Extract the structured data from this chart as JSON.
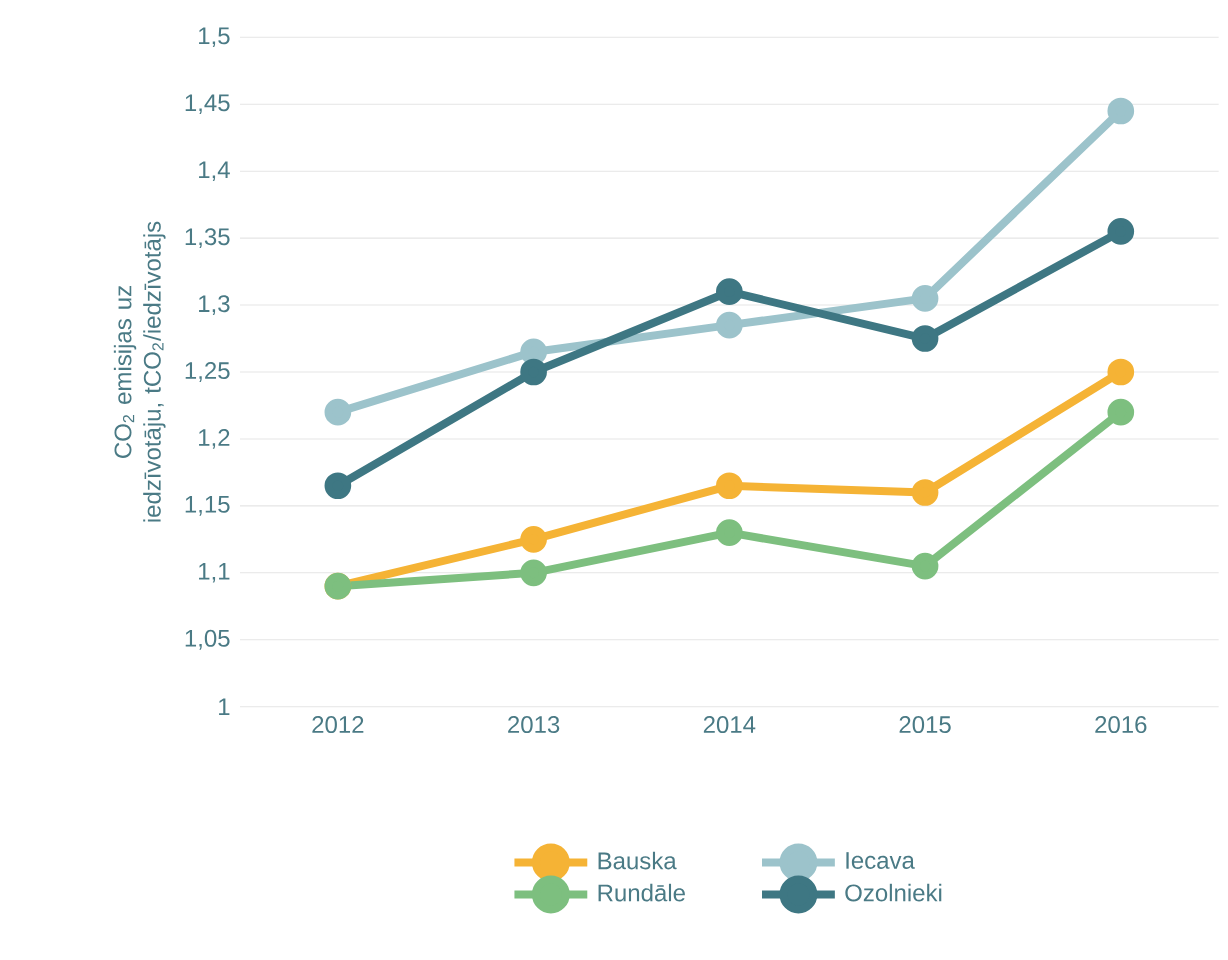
{
  "chart_data": {
    "type": "line",
    "ylabel": "CO$_{2}$ emisijas uz iedzīvotāju, tCO$_{2}$/iedzīvotājs",
    "categories": [
      "2012",
      "2013",
      "2014",
      "2015",
      "2016"
    ],
    "series": [
      {
        "name": "Bauska",
        "color": "#f5b335",
        "values": [
          1.09,
          1.125,
          1.165,
          1.16,
          1.25
        ]
      },
      {
        "name": "Iecava",
        "color": "#9cc3cb",
        "values": [
          1.22,
          1.265,
          1.285,
          1.305,
          1.445
        ]
      },
      {
        "name": "Rundāle",
        "color": "#7dbf7f",
        "values": [
          1.09,
          1.1,
          1.13,
          1.105,
          1.22
        ]
      },
      {
        "name": "Ozolnieki",
        "color": "#3e7783",
        "values": [
          1.165,
          1.25,
          1.31,
          1.275,
          1.355
        ]
      }
    ],
    "ylim": [
      1,
      1.5
    ],
    "yticks": [
      1,
      {
        "value": 1.05,
        "label": "1,05"
      },
      {
        "value": 1.1,
        "label": "1,1"
      },
      {
        "value": 1.15,
        "label": "1,15"
      },
      {
        "value": 1.2,
        "label": "1,2"
      },
      {
        "value": 1.25,
        "label": "1,25"
      },
      {
        "value": 1.3,
        "label": "1,3"
      },
      {
        "value": 1.35,
        "label": "1,35"
      },
      {
        "value": 1.4,
        "label": "1,4"
      },
      {
        "value": 1.45,
        "label": "1,45"
      },
      {
        "value": 1.5,
        "label": "1,5"
      }
    ],
    "grid": "y",
    "legend": "bottom",
    "marker": "circle",
    "line_style": "solid"
  }
}
